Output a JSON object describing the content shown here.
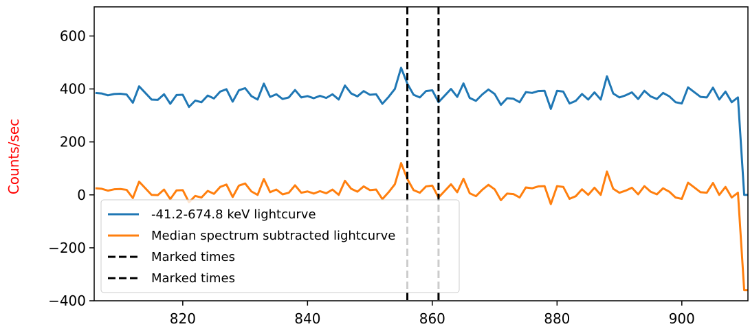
{
  "chart_data": {
    "type": "line",
    "title": "",
    "xlabel": "",
    "ylabel": "Counts/sec",
    "ylabel_color": "#ff0000",
    "xlim": [
      805.8,
      910.6
    ],
    "ylim": [
      -400,
      710
    ],
    "x_ticks": [
      820,
      840,
      860,
      880,
      900
    ],
    "x_tick_labels": [
      "820",
      "840",
      "860",
      "880",
      "900"
    ],
    "y_ticks": [
      -400,
      -200,
      0,
      200,
      400,
      600
    ],
    "y_tick_labels": [
      "−400",
      "−200",
      "0",
      "200",
      "400",
      "600"
    ],
    "grid": false,
    "legend_position": "lower-left",
    "series": [
      {
        "name": "-41.2-674.8 keV lightcurve",
        "color": "#1f77b4",
        "style": "solid",
        "x": [
          806,
          807,
          808,
          809,
          810,
          811,
          812,
          813,
          814,
          815,
          816,
          817,
          818,
          819,
          820,
          821,
          822,
          823,
          824,
          825,
          826,
          827,
          828,
          829,
          830,
          831,
          832,
          833,
          834,
          835,
          836,
          837,
          838,
          839,
          840,
          841,
          842,
          843,
          844,
          845,
          846,
          847,
          848,
          849,
          850,
          851,
          852,
          853,
          854,
          855,
          856,
          857,
          858,
          859,
          860,
          861,
          862,
          863,
          864,
          865,
          866,
          867,
          868,
          869,
          870,
          871,
          872,
          873,
          874,
          875,
          876,
          877,
          878,
          879,
          880,
          881,
          882,
          883,
          884,
          885,
          886,
          887,
          888,
          889,
          890,
          891,
          892,
          893,
          894,
          895,
          896,
          897,
          898,
          899,
          900,
          901,
          902,
          903,
          904,
          905,
          906,
          907,
          908,
          909,
          910,
          910.6
        ],
        "values": [
          385,
          383,
          376,
          381,
          382,
          379,
          348,
          410,
          385,
          360,
          359,
          380,
          344,
          377,
          378,
          332,
          356,
          350,
          375,
          364,
          390,
          399,
          352,
          395,
          403,
          373,
          360,
          420,
          370,
          380,
          362,
          368,
          396,
          368,
          373,
          365,
          374,
          366,
          380,
          360,
          413,
          383,
          372,
          392,
          378,
          380,
          344,
          370,
          400,
          480,
          420,
          378,
          368,
          392,
          395,
          350,
          375,
          400,
          370,
          421,
          366,
          355,
          379,
          398,
          381,
          340,
          365,
          363,
          350,
          388,
          385,
          392,
          393,
          325,
          393,
          390,
          345,
          355,
          381,
          360,
          387,
          360,
          448,
          383,
          368,
          376,
          387,
          362,
          393,
          372,
          362,
          385,
          372,
          350,
          345,
          406,
          388,
          370,
          368,
          405,
          360,
          390,
          350,
          368,
          0,
          0
        ]
      },
      {
        "name": "Median spectrum subtracted lightcurve",
        "color": "#ff7f0e",
        "style": "solid",
        "x": [
          806,
          807,
          808,
          809,
          810,
          811,
          812,
          813,
          814,
          815,
          816,
          817,
          818,
          819,
          820,
          821,
          822,
          823,
          824,
          825,
          826,
          827,
          828,
          829,
          830,
          831,
          832,
          833,
          834,
          835,
          836,
          837,
          838,
          839,
          840,
          841,
          842,
          843,
          844,
          845,
          846,
          847,
          848,
          849,
          850,
          851,
          852,
          853,
          854,
          855,
          856,
          857,
          858,
          859,
          860,
          861,
          862,
          863,
          864,
          865,
          866,
          867,
          868,
          869,
          870,
          871,
          872,
          873,
          874,
          875,
          876,
          877,
          878,
          879,
          880,
          881,
          882,
          883,
          884,
          885,
          886,
          887,
          888,
          889,
          890,
          891,
          892,
          893,
          894,
          895,
          896,
          897,
          898,
          899,
          900,
          901,
          902,
          903,
          904,
          905,
          906,
          907,
          908,
          909,
          910,
          910.6
        ],
        "values": [
          25,
          23,
          16,
          21,
          22,
          19,
          -12,
          50,
          25,
          0,
          -1,
          20,
          -16,
          17,
          18,
          -28,
          -4,
          -10,
          15,
          4,
          30,
          39,
          -8,
          35,
          43,
          13,
          0,
          60,
          10,
          20,
          2,
          8,
          36,
          8,
          13,
          5,
          14,
          6,
          20,
          0,
          53,
          23,
          12,
          32,
          18,
          20,
          -16,
          10,
          40,
          120,
          60,
          18,
          8,
          32,
          35,
          -10,
          15,
          40,
          10,
          61,
          6,
          -5,
          19,
          38,
          21,
          -20,
          5,
          3,
          -10,
          28,
          25,
          32,
          33,
          -35,
          33,
          30,
          -15,
          -5,
          21,
          0,
          27,
          0,
          88,
          23,
          8,
          16,
          27,
          2,
          33,
          12,
          2,
          25,
          12,
          -10,
          -15,
          46,
          28,
          10,
          8,
          45,
          0,
          30,
          -10,
          8,
          -360,
          -360
        ]
      }
    ],
    "vlines": [
      {
        "name": "Marked times",
        "x": 856,
        "color": "#000000",
        "style": "dashed"
      },
      {
        "name": "Marked times",
        "x": 861,
        "color": "#000000",
        "style": "dashed"
      }
    ]
  }
}
